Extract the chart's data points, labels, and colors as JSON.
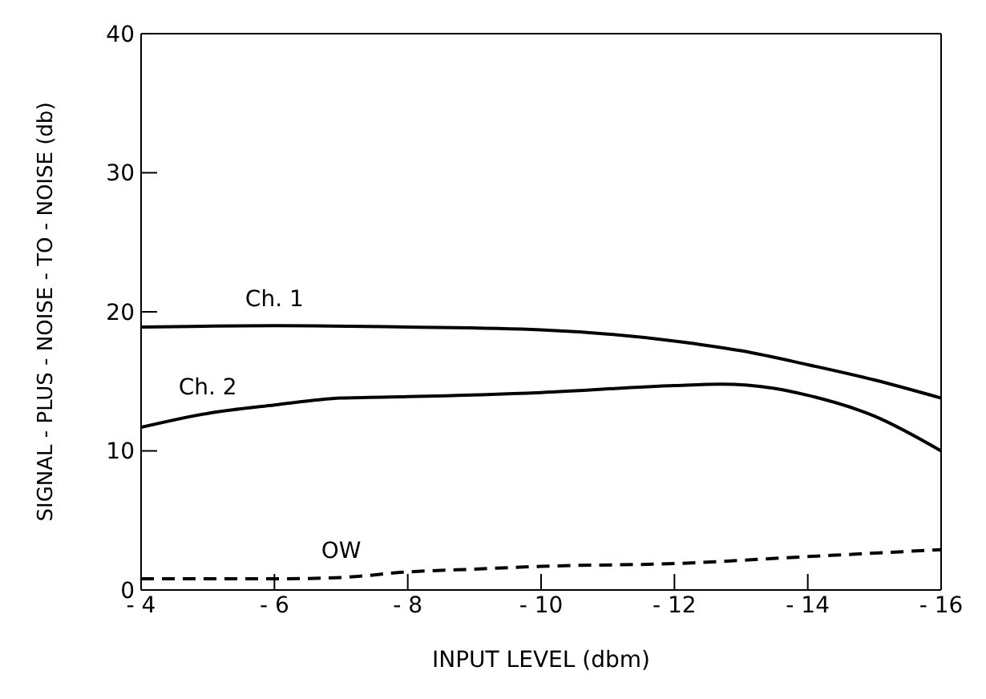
{
  "chart_data": {
    "type": "line",
    "xlabel": "INPUT LEVEL (dbm)",
    "ylabel": "SIGNAL - PLUS - NOISE - TO - NOISE (db)",
    "xlim": [
      -4,
      -16
    ],
    "xticks": [
      -4,
      -6,
      -8,
      -10,
      -12,
      -14,
      -16
    ],
    "ylim": [
      0,
      40
    ],
    "yticks": [
      0,
      10,
      20,
      30,
      40
    ],
    "marker": "none",
    "series": [
      {
        "name": "Ch. 1",
        "color": "#000000",
        "line_style": "solid",
        "x": [
          -4,
          -6,
          -8,
          -10,
          -12,
          -13,
          -14,
          -15,
          -16
        ],
        "values": [
          18.9,
          19.0,
          18.9,
          18.7,
          17.9,
          17.2,
          16.2,
          15.1,
          13.8
        ]
      },
      {
        "name": "Ch. 2",
        "color": "#000000",
        "line_style": "solid",
        "x": [
          -4,
          -5,
          -6,
          -7,
          -8,
          -10,
          -12,
          -12.7,
          -13.5,
          -14,
          -15,
          -16
        ],
        "values": [
          11.7,
          12.7,
          13.3,
          13.8,
          13.9,
          14.2,
          14.7,
          14.8,
          14.5,
          14.0,
          12.5,
          10.0
        ]
      },
      {
        "name": "OW",
        "color": "#000000",
        "line_style": "dashed",
        "x": [
          -4,
          -6,
          -7,
          -8,
          -9,
          -10,
          -12,
          -14,
          -16
        ],
        "values": [
          0.8,
          0.8,
          0.9,
          1.3,
          1.5,
          1.7,
          1.9,
          2.4,
          2.9
        ]
      }
    ]
  }
}
